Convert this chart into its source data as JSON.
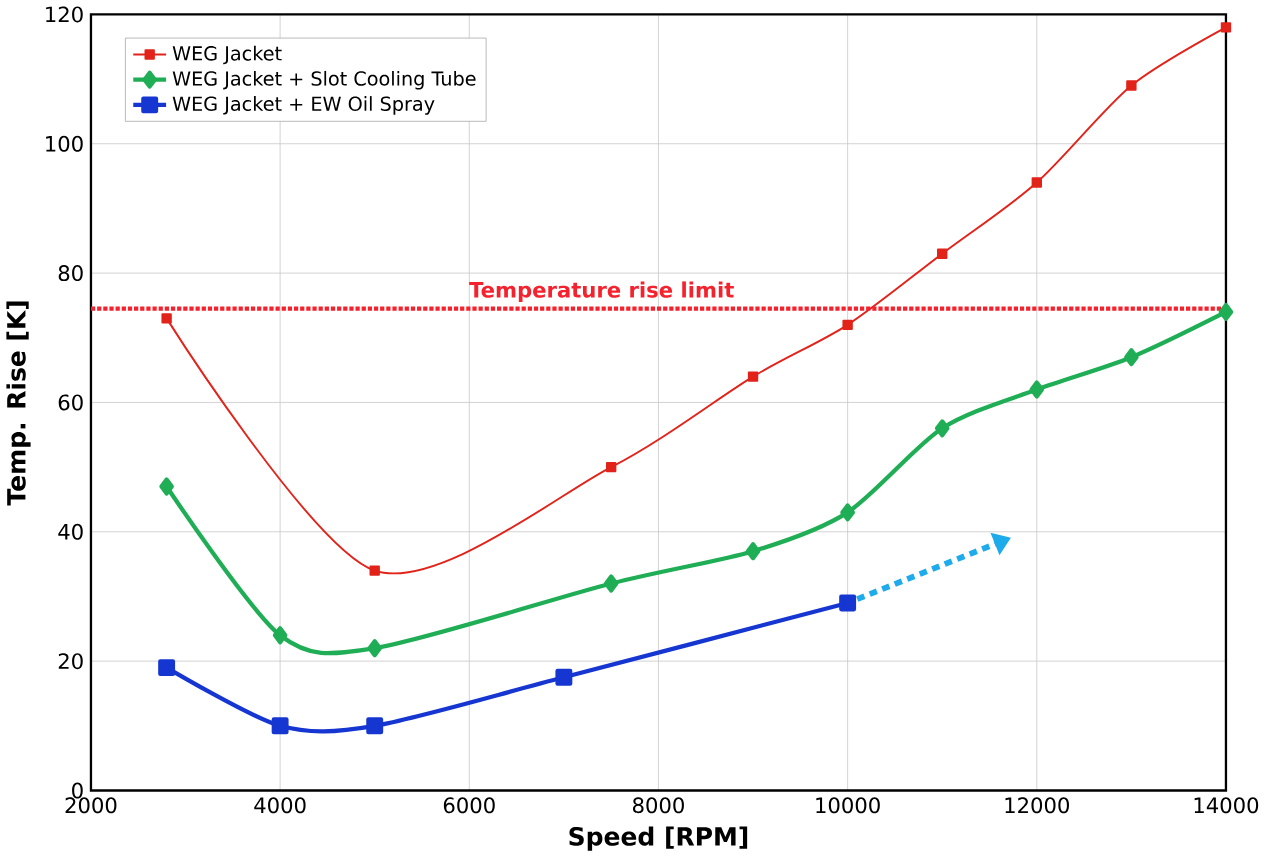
{
  "chart_data": {
    "type": "line",
    "xlabel": "Speed [RPM]",
    "ylabel": "Temp. Rise [K]",
    "xlim": [
      2000,
      14000
    ],
    "xticks": [
      2000,
      4000,
      6000,
      8000,
      10000,
      12000,
      14000
    ],
    "ylim": [
      0,
      120
    ],
    "yticks": [
      0,
      20,
      40,
      60,
      80,
      100,
      120
    ],
    "grid": true,
    "legend": "top left",
    "series": [
      {
        "name": "WEG Jacket",
        "color": "#e2231a",
        "marker": "square",
        "x": [
          2800,
          5000,
          7500,
          9000,
          10000,
          11000,
          12000,
          13000,
          14000
        ],
        "values": [
          73,
          34,
          50,
          64,
          72,
          83,
          94,
          109,
          118
        ]
      },
      {
        "name": "WEG Jacket + Slot Cooling Tube",
        "color": "#1fae55",
        "marker": "diamond",
        "x": [
          2800,
          4000,
          5000,
          7500,
          9000,
          10000,
          11000,
          12000,
          13000,
          14000
        ],
        "values": [
          47,
          24,
          22,
          32,
          37,
          43,
          56,
          62,
          67,
          74
        ]
      },
      {
        "name": "WEG Jacket + EW Oil Spray",
        "color": "#1636d2",
        "marker": "square",
        "x": [
          2800,
          4000,
          5000,
          7000,
          10000
        ],
        "values": [
          19,
          10,
          10,
          17.5,
          29
        ]
      }
    ],
    "ref_lines": [
      {
        "axis": "y",
        "value": 74.5,
        "label": "Temperature rise limit",
        "color": "#f5222d",
        "line_style": "dotted"
      }
    ]
  }
}
